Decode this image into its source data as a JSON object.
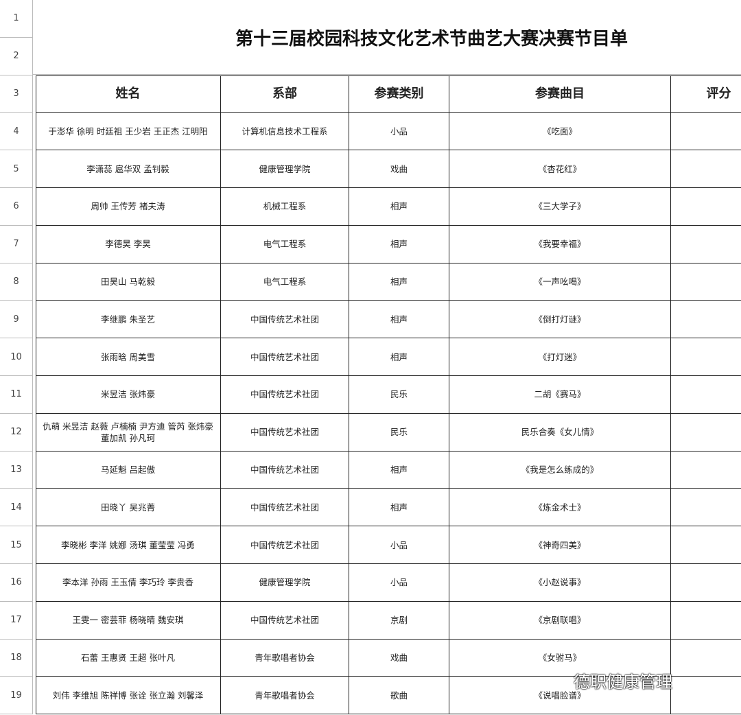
{
  "title": "第十三届校园科技文化艺术节曲艺大赛决赛节目单",
  "row_numbers": [
    1,
    2,
    3,
    4,
    5,
    6,
    7,
    8,
    9,
    10,
    11,
    12,
    13,
    14,
    15,
    16,
    17,
    18,
    19
  ],
  "table": {
    "header": [
      "姓名",
      "系部",
      "参赛类别",
      "参赛曲目",
      "评分"
    ],
    "rows": [
      [
        "于澎华 徐明 时廷祖 王少岩 王正杰 江明阳",
        "计算机信息技术工程系",
        "小品",
        "《吃面》"
      ],
      [
        "李潇蕊 扈华双 孟钊毅",
        "健康管理学院",
        "戏曲",
        "《杏花红》"
      ],
      [
        "周帅 王传芳 褚夫涛",
        "机械工程系",
        "相声",
        "《三大学子》"
      ],
      [
        "李德昊 李昊",
        "电气工程系",
        "相声",
        "《我要幸福》"
      ],
      [
        "田昊山 马乾毅",
        "电气工程系",
        "相声",
        "《一声吆喝》"
      ],
      [
        "李继鹏 朱圣艺",
        "中国传统艺术社团",
        "相声",
        "《倒打灯谜》"
      ],
      [
        "张雨晗 周美雪",
        "中国传统艺术社团",
        "相声",
        "《打灯迷》"
      ],
      [
        "米昱洁 张炜豪",
        "中国传统艺术社团",
        "民乐",
        "二胡《赛马》"
      ],
      [
        "仇萌 米昱洁 赵薇 卢楠楠 尹方迪 管芮 张炜豪 董加凯 孙凡珂",
        "中国传统艺术社团",
        "民乐",
        "民乐合奏《女儿情》"
      ],
      [
        "马延魁 吕起傲",
        "中国传统艺术社团",
        "相声",
        "《我是怎么练成的》"
      ],
      [
        "田晓丫 吴兆菁",
        "中国传统艺术社团",
        "相声",
        "《炼金术士》"
      ],
      [
        "李晓彬 李洋 姚娜 汤琪 董莹莹 冯勇",
        "中国传统艺术社团",
        "小品",
        "《神奇四美》"
      ],
      [
        "李本洋 孙雨 王玉倩 李巧玲 李贵香",
        "健康管理学院",
        "小品",
        "《小赵说事》"
      ],
      [
        "王雯一 密芸菲 杨晓晴 魏安琪",
        "中国传统艺术社团",
        "京剧",
        "《京剧联唱》"
      ],
      [
        "石蕾 王惠贤 王超 张叶凡",
        "青年歌唱者协会",
        "戏曲",
        "《女驸马》"
      ],
      [
        "刘伟 李维旭 陈祥博 张诠 张立瀚 刘馨泽",
        "青年歌唱者协会",
        "歌曲",
        "《说唱脸谱》"
      ]
    ]
  },
  "watermark": "德职健康管理"
}
